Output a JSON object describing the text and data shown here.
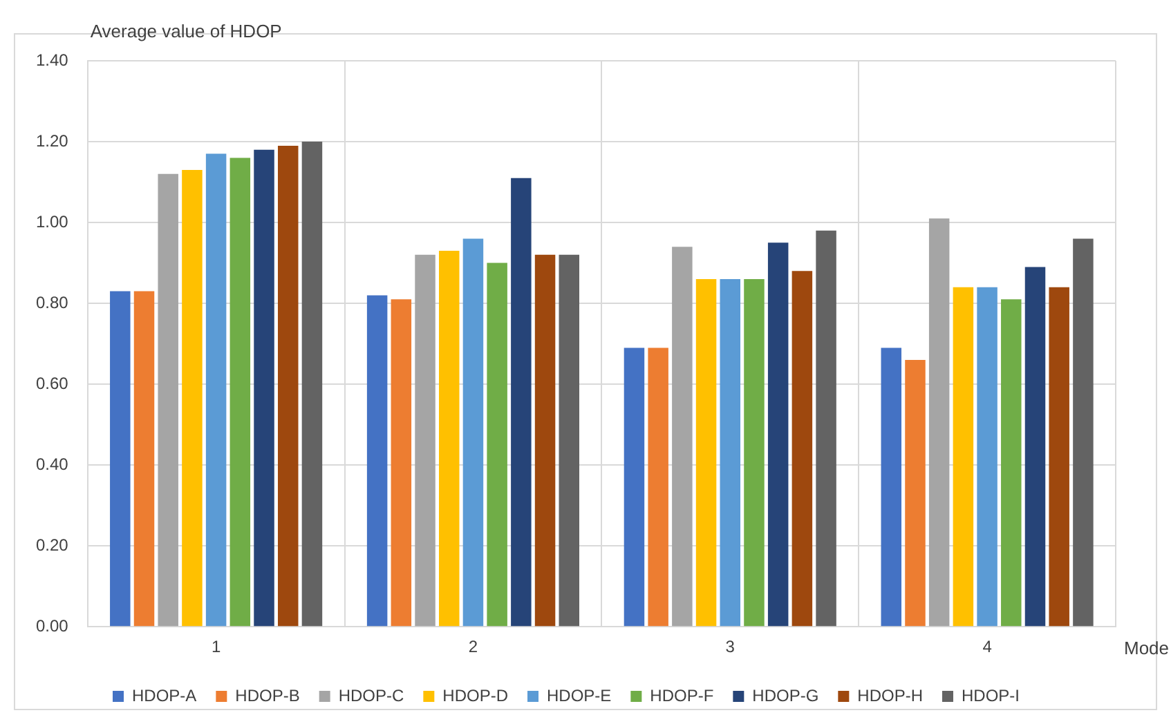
{
  "chart_data": {
    "type": "bar",
    "ylabel": "Average value of HDOP",
    "xlabel": "Mode",
    "categories": [
      "1",
      "2",
      "3",
      "4"
    ],
    "series": [
      {
        "name": "HDOP-A",
        "color": "#4472c4",
        "values": [
          0.83,
          0.82,
          0.69,
          0.69
        ]
      },
      {
        "name": "HDOP-B",
        "color": "#ed7d31",
        "values": [
          0.83,
          0.81,
          0.69,
          0.66
        ]
      },
      {
        "name": "HDOP-C",
        "color": "#a5a5a5",
        "values": [
          1.12,
          0.92,
          0.94,
          1.01
        ]
      },
      {
        "name": "HDOP-D",
        "color": "#ffc000",
        "values": [
          1.13,
          0.93,
          0.86,
          0.84
        ]
      },
      {
        "name": "HDOP-E",
        "color": "#5b9bd5",
        "values": [
          1.17,
          0.96,
          0.86,
          0.84
        ]
      },
      {
        "name": "HDOP-F",
        "color": "#70ad47",
        "values": [
          1.16,
          0.9,
          0.86,
          0.81
        ]
      },
      {
        "name": "HDOP-G",
        "color": "#264478",
        "values": [
          1.18,
          1.11,
          0.95,
          0.89
        ]
      },
      {
        "name": "HDOP-H",
        "color": "#9e480e",
        "values": [
          1.19,
          0.92,
          0.88,
          0.84
        ]
      },
      {
        "name": "HDOP-I",
        "color": "#636363",
        "values": [
          1.2,
          0.92,
          0.98,
          0.96
        ]
      }
    ],
    "ylim": [
      0,
      1.4
    ],
    "yticks": [
      {
        "value": 0,
        "label": "0.00"
      },
      {
        "value": 0.2,
        "label": "0.20"
      },
      {
        "value": 0.4,
        "label": "0.40"
      },
      {
        "value": 0.6,
        "label": "0.60"
      },
      {
        "value": 0.8,
        "label": "0.80"
      },
      {
        "value": 1.0,
        "label": "1.00"
      },
      {
        "value": 1.2,
        "label": "1.20"
      },
      {
        "value": 1.4,
        "label": "1.40"
      }
    ],
    "grid": true,
    "legend": "bottom"
  }
}
